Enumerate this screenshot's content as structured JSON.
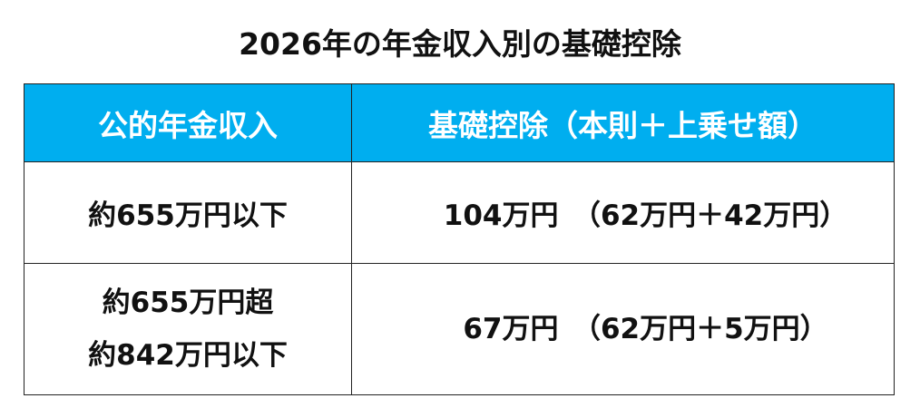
{
  "title": "2026年の年金収入別の基礎控除",
  "table": {
    "headers": [
      "公的年金収入",
      "基礎控除（本則＋上乗せ額）"
    ],
    "rows": [
      {
        "income": [
          "約655万円以下"
        ],
        "deduction": "104万円　（62万円＋42万円）"
      },
      {
        "income": [
          "約655万円超",
          "約842万円以下"
        ],
        "deduction": "67万円　（62万円＋5万円）"
      }
    ]
  },
  "colors": {
    "header_bg": "#00AEEF",
    "header_text": "#FFFFFF"
  }
}
